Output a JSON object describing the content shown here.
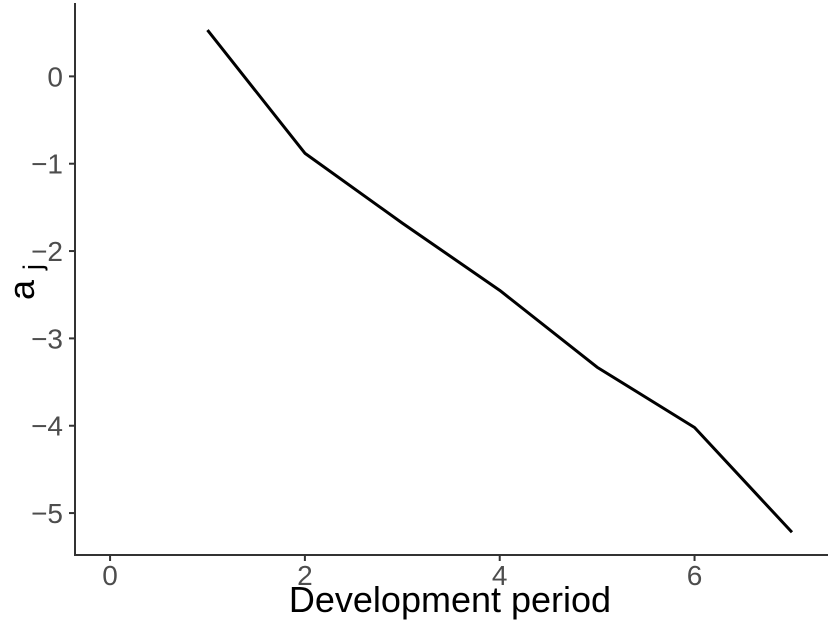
{
  "chart_data": {
    "type": "line",
    "title": "",
    "xlabel": "Development period",
    "ylabel_main": "a",
    "ylabel_sub": "j",
    "x": [
      1,
      2,
      3,
      4,
      5,
      6,
      7
    ],
    "series": [
      {
        "name": "aj",
        "values": [
          0.53,
          -0.88,
          -1.68,
          -2.45,
          -3.33,
          -4.02,
          -5.22
        ]
      }
    ],
    "x_ticks": [
      0,
      2,
      4,
      6
    ],
    "x_tick_labels": [
      "0",
      "2",
      "4",
      "6"
    ],
    "y_ticks": [
      0,
      -1,
      -2,
      -3,
      -4,
      -5
    ],
    "y_tick_labels": [
      "0",
      "−1",
      "−2",
      "−3",
      "−4",
      "−5"
    ],
    "xlim": [
      -0.36,
      7.37
    ],
    "ylim": [
      -5.48,
      0.84
    ],
    "grid": false,
    "legend": false,
    "line_color": "#000000",
    "line_width": 3,
    "axis_color": "#333333",
    "tick_label_color": "#4d4d4d",
    "background_color": "#ffffff"
  }
}
